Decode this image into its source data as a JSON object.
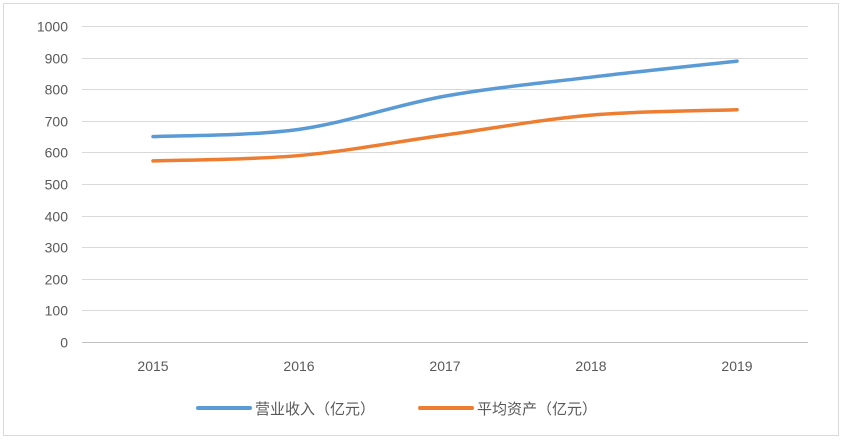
{
  "chart_data": {
    "type": "line",
    "categories": [
      "2015",
      "2016",
      "2017",
      "2018",
      "2019"
    ],
    "series": [
      {
        "name": "营业收入（亿元）",
        "values": [
          650,
          673,
          778,
          838,
          889
        ],
        "color": "#5B9BD5"
      },
      {
        "name": "平均资产（亿元）",
        "values": [
          573,
          590,
          655,
          718,
          735
        ],
        "color": "#ED7D31"
      }
    ],
    "ylim": [
      0,
      1000
    ],
    "yticks": [
      0,
      100,
      200,
      300,
      400,
      500,
      600,
      700,
      800,
      900,
      1000
    ],
    "grid": true,
    "smooth": true,
    "legend": "bottom"
  },
  "colors": {
    "gridline": "#D9D9D9",
    "axis": "#BFBFBF",
    "frame": "#D9D9D9",
    "text": "#595959"
  }
}
